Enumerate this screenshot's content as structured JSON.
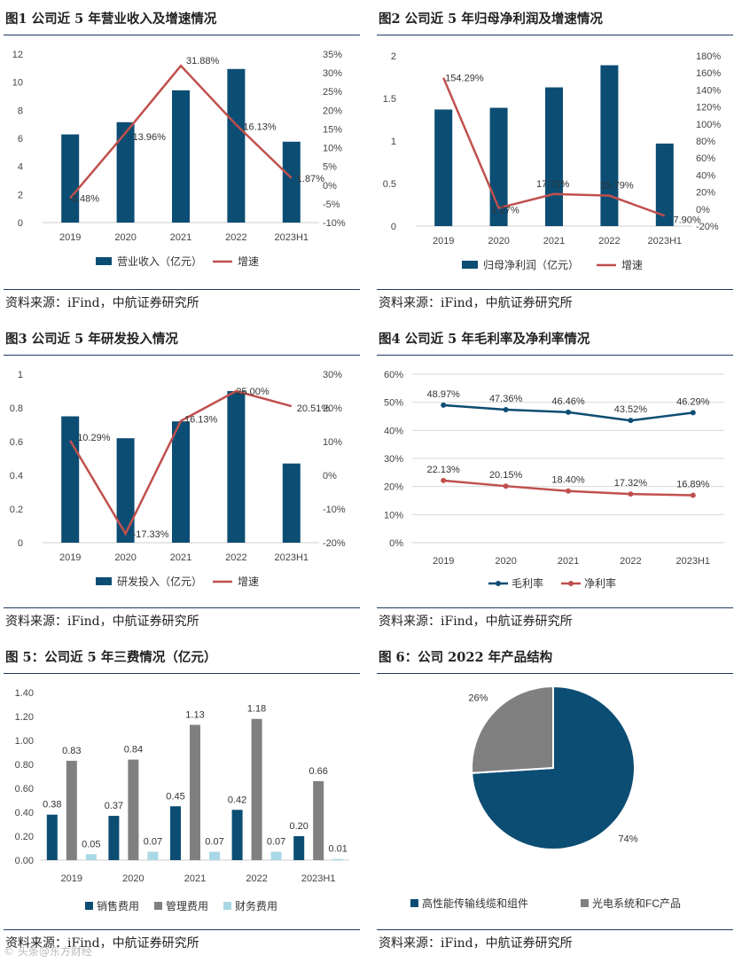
{
  "colors": {
    "bar": "#0c4d73",
    "line": "#c0504d",
    "gray": "#808080",
    "light": "#a8d8e5",
    "rule": "#1f3c63"
  },
  "watermark": "© 头条@东方财经",
  "panels": [
    {
      "title": "图1 公司近 5 年营业收入及增速情况",
      "source": "资料来源：iFind，中航证券研究所",
      "chart_data": {
        "type": "bar",
        "categories": [
          "2019",
          "2020",
          "2021",
          "2022",
          "2023H1"
        ],
        "series": [
          {
            "name": "营业收入（亿元）",
            "kind": "bar",
            "axis": "left",
            "values": [
              6.28,
              7.15,
              9.42,
              10.94,
              5.76
            ]
          },
          {
            "name": "增速",
            "kind": "line",
            "axis": "right",
            "values": [
              -3.48,
              13.96,
              31.88,
              16.13,
              1.87
            ],
            "labels": [
              "-3.48%",
              "13.96%",
              "31.88%",
              "16.13%",
              "1.87%"
            ]
          }
        ],
        "left_axis": {
          "ticks": [
            "0",
            "2",
            "4",
            "6",
            "8",
            "10",
            "12"
          ],
          "range": [
            0,
            12
          ]
        },
        "right_axis": {
          "ticks": [
            "-10%",
            "-5%",
            "0%",
            "5%",
            "10%",
            "15%",
            "20%",
            "25%",
            "30%",
            "35%"
          ],
          "range": [
            -10,
            35
          ]
        },
        "legend": "bottom"
      }
    },
    {
      "title": "图2 公司近 5 年归母净利润及增速情况",
      "source": "资料来源：iFind，中航证券研究所",
      "chart_data": {
        "type": "bar",
        "categories": [
          "2019",
          "2020",
          "2021",
          "2022",
          "2023H1"
        ],
        "series": [
          {
            "name": "归母净利润（亿元）",
            "kind": "bar",
            "axis": "left",
            "values": [
              1.37,
              1.39,
              1.63,
              1.89,
              0.97
            ]
          },
          {
            "name": "增速",
            "kind": "line",
            "axis": "right",
            "values": [
              154.29,
              1.27,
              17.71,
              15.79,
              -7.9
            ],
            "labels": [
              "154.29%",
              "1.27%",
              "17.71%",
              "15.79%",
              "-7.90%"
            ]
          }
        ],
        "left_axis": {
          "ticks": [
            "0",
            "0.5",
            "1",
            "1.5",
            "2"
          ],
          "range": [
            0,
            2
          ]
        },
        "right_axis": {
          "ticks": [
            "-20%",
            "0%",
            "20%",
            "40%",
            "60%",
            "80%",
            "100%",
            "120%",
            "140%",
            "160%",
            "180%"
          ],
          "range": [
            -20,
            180
          ]
        },
        "legend": "bottom"
      }
    },
    {
      "title": "图3 公司近 5 年研发投入情况",
      "source": "资料来源：iFind，中航证券研究所",
      "chart_data": {
        "type": "bar",
        "categories": [
          "2019",
          "2020",
          "2021",
          "2022",
          "2023H1"
        ],
        "series": [
          {
            "name": "研发投入（亿元）",
            "kind": "bar",
            "axis": "left",
            "values": [
              0.75,
              0.62,
              0.72,
              0.9,
              0.47
            ]
          },
          {
            "name": "增速",
            "kind": "line",
            "axis": "right",
            "values": [
              10.29,
              -17.33,
              16.13,
              25.0,
              20.51
            ],
            "labels": [
              "10.29%",
              "-17.33%",
              "16.13%",
              "25.00%",
              "20.51%"
            ]
          }
        ],
        "left_axis": {
          "ticks": [
            "0",
            "0.2",
            "0.4",
            "0.6",
            "0.8",
            "1"
          ],
          "range": [
            0,
            1
          ]
        },
        "right_axis": {
          "ticks": [
            "-20%",
            "-10%",
            "0%",
            "10%",
            "20%",
            "30%"
          ],
          "range": [
            -20,
            30
          ]
        },
        "legend": "bottom"
      }
    },
    {
      "title": "图4 公司近 5 年毛利率及净利率情况",
      "source": "资料来源：iFind，中航证券研究所",
      "chart_data": {
        "type": "line",
        "categories": [
          "2019",
          "2020",
          "2021",
          "2022",
          "2023H1"
        ],
        "series": [
          {
            "name": "毛利率",
            "values": [
              48.97,
              47.36,
              46.46,
              43.52,
              46.29
            ],
            "labels": [
              "48.97%",
              "47.36%",
              "46.46%",
              "43.52%",
              "46.29%"
            ]
          },
          {
            "name": "净利率",
            "values": [
              22.13,
              20.15,
              18.4,
              17.32,
              16.89
            ],
            "labels": [
              "22.13%",
              "20.15%",
              "18.40%",
              "17.32%",
              "16.89%"
            ]
          }
        ],
        "left_axis": {
          "ticks": [
            "0%",
            "10%",
            "20%",
            "30%",
            "40%",
            "50%",
            "60%"
          ],
          "range": [
            0,
            60
          ]
        },
        "grid": true,
        "legend": "bottom"
      }
    },
    {
      "title": "图 5：公司近 5 年三费情况（亿元）",
      "source": "资料来源：iFind，中航证券研究所",
      "chart_data": {
        "type": "bar",
        "categories": [
          "2019",
          "2020",
          "2021",
          "2022",
          "2023H1"
        ],
        "series": [
          {
            "name": "销售费用",
            "values": [
              0.38,
              0.37,
              0.45,
              0.42,
              0.2
            ],
            "labels": [
              "0.38",
              "0.37",
              "0.45",
              "0.42",
              "0.20"
            ]
          },
          {
            "name": "管理费用",
            "values": [
              0.83,
              0.84,
              1.13,
              1.18,
              0.66
            ],
            "labels": [
              "0.83",
              "0.84",
              "1.13",
              "1.18",
              "0.66"
            ]
          },
          {
            "name": "财务费用",
            "values": [
              0.05,
              0.07,
              0.07,
              0.07,
              0.01
            ],
            "labels": [
              "0.05",
              "0.07",
              "0.07",
              "0.07",
              "0.01"
            ]
          }
        ],
        "left_axis": {
          "ticks": [
            "0.00",
            "0.20",
            "0.40",
            "0.60",
            "0.80",
            "1.00",
            "1.20",
            "1.40"
          ],
          "range": [
            0,
            1.4
          ]
        },
        "legend": "bottom"
      }
    },
    {
      "title": "图 6：公司 2022 年产品结构",
      "source": "资料来源：iFind，中航证券研究所",
      "chart_data": {
        "type": "pie",
        "slices": [
          {
            "name": "高性能传输线缆和组件",
            "value": 74,
            "label": "74%"
          },
          {
            "name": "光电系统和FC产品",
            "value": 26,
            "label": "26%"
          }
        ],
        "legend": "bottom"
      }
    }
  ]
}
